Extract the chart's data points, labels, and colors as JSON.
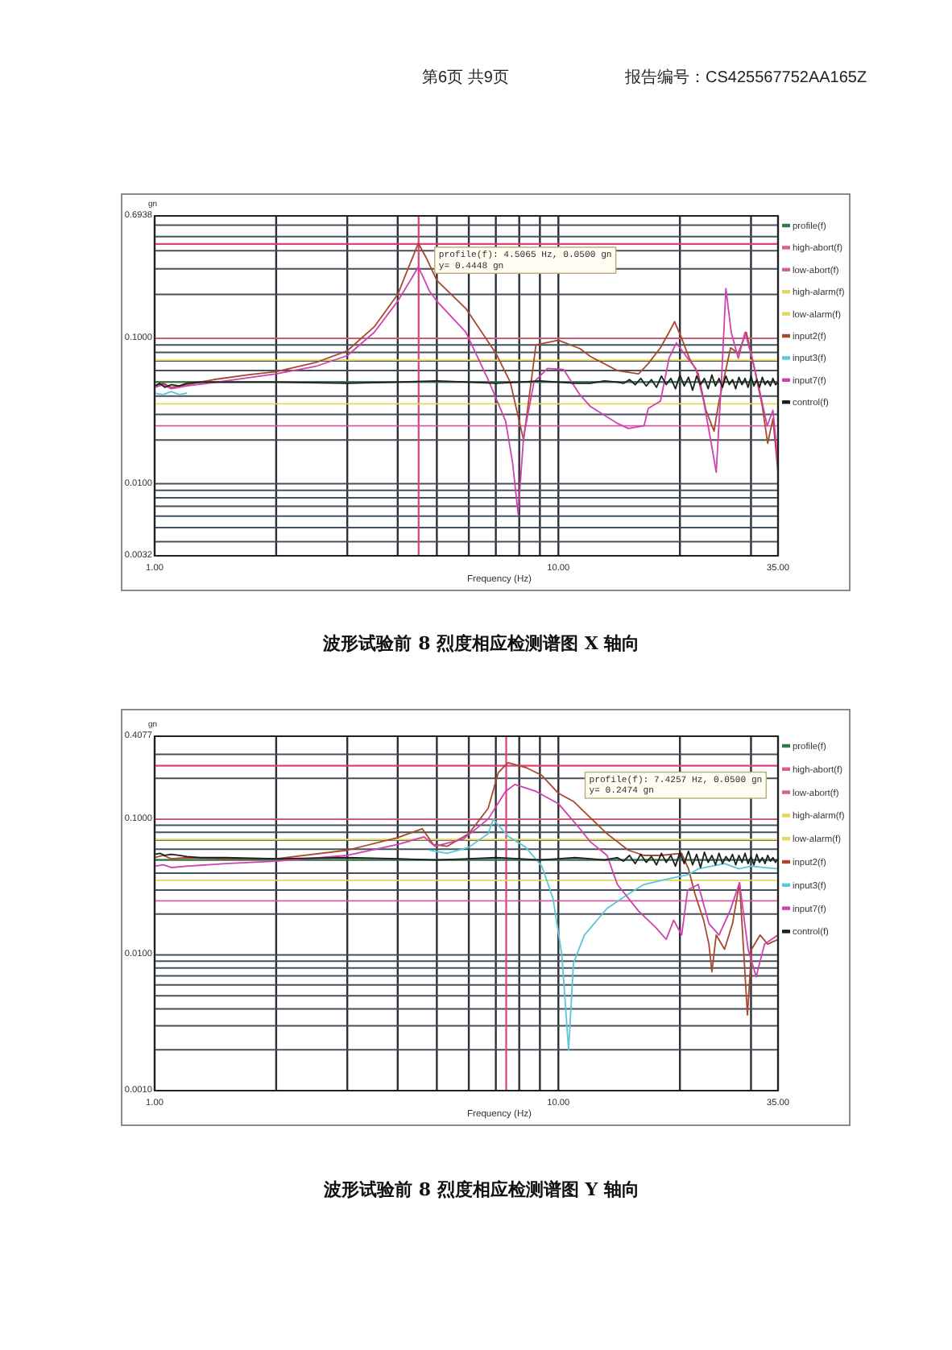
{
  "chart_data": [
    {
      "type": "line",
      "title": "波形试验前 8 烈度相应检测谱图 X 轴向",
      "xlabel": "Frequency (Hz)",
      "ylabel": "gn",
      "log": "xy",
      "xlim": [
        1,
        35
      ],
      "ylim": [
        0.0032,
        0.6938
      ],
      "xticks": [
        {
          "value": 1,
          "label": "1.00"
        },
        {
          "value": 2,
          "label": null
        },
        {
          "value": 3,
          "label": null
        },
        {
          "value": 4,
          "label": null
        },
        {
          "value": 5,
          "label": null
        },
        {
          "value": 6,
          "label": null
        },
        {
          "value": 7,
          "label": null
        },
        {
          "value": 8,
          "label": null
        },
        {
          "value": 9,
          "label": null
        },
        {
          "value": 10,
          "label": "10.00"
        },
        {
          "value": 20,
          "label": null
        },
        {
          "value": 30,
          "label": null
        },
        {
          "value": 35,
          "label": "35.00"
        }
      ],
      "yticks": [
        {
          "value": 0.0032,
          "label": "0.0032"
        },
        {
          "value": 0.004,
          "label": null
        },
        {
          "value": 0.005,
          "label": null
        },
        {
          "value": 0.006,
          "label": null
        },
        {
          "value": 0.007,
          "label": null
        },
        {
          "value": 0.008,
          "label": null
        },
        {
          "value": 0.009,
          "label": null
        },
        {
          "value": 0.01,
          "label": "0.0100"
        },
        {
          "value": 0.02,
          "label": null
        },
        {
          "value": 0.03,
          "label": null
        },
        {
          "value": 0.04,
          "label": null
        },
        {
          "value": 0.05,
          "label": null
        },
        {
          "value": 0.06,
          "label": null
        },
        {
          "value": 0.07,
          "label": null
        },
        {
          "value": 0.08,
          "label": null
        },
        {
          "value": 0.09,
          "label": null
        },
        {
          "value": 0.1,
          "label": "0.1000"
        },
        {
          "value": 0.2,
          "label": null
        },
        {
          "value": 0.3,
          "label": null
        },
        {
          "value": 0.4,
          "label": null
        },
        {
          "value": 0.5,
          "label": null
        },
        {
          "value": 0.6,
          "label": null
        },
        {
          "value": 0.6938,
          "label": "0.6938"
        }
      ],
      "grid": true,
      "legend": "right",
      "ref_lines": [
        {
          "axis": "x",
          "value": 4.5065,
          "color": "#e0407a"
        },
        {
          "axis": "y",
          "value": 0.4448,
          "color": "#e0407a"
        }
      ],
      "annotations": [
        "第6页 共9页",
        "报告编号：CS425567752AA165Z",
        "profile(f): 4.5065 Hz, 0.0500 gn",
        "y= 0.4448 gn"
      ],
      "series": [
        {
          "name": "profile(f)",
          "color": "#2f7a45",
          "x": [
            1,
            35
          ],
          "values": [
            0.05,
            0.05
          ]
        },
        {
          "name": "high-abort(f)",
          "color": "#e0607a",
          "x": [
            1,
            35
          ],
          "values": [
            0.1,
            0.1
          ]
        },
        {
          "name": "low-abort(f)",
          "color": "#d060a0",
          "x": [
            1,
            35
          ],
          "values": [
            0.025,
            0.025
          ]
        },
        {
          "name": "high-alarm(f)",
          "color": "#e6d65a",
          "x": [
            1,
            35
          ],
          "values": [
            0.0707,
            0.0707
          ]
        },
        {
          "name": "low-alarm(f)",
          "color": "#e6d65a",
          "x": [
            1,
            35
          ],
          "values": [
            0.0354,
            0.0354
          ]
        },
        {
          "name": "input2(f)",
          "color": "#a8482c",
          "x": [
            1,
            1.05,
            1.1,
            1.2,
            1.4,
            1.7,
            2,
            2.5,
            3,
            3.5,
            4,
            4.3,
            4.5,
            4.7,
            5,
            5.9,
            7,
            7.6,
            8.2,
            8.8,
            10,
            11.3,
            12,
            14,
            15.8,
            16.7,
            17.9,
            18.8,
            19.4,
            20.2,
            21.1,
            22.2,
            23.2,
            24.3,
            25,
            26.7,
            27.9,
            29.2,
            30.6,
            32,
            33,
            34,
            35
          ],
          "values": [
            0.047,
            0.049,
            0.046,
            0.048,
            0.052,
            0.056,
            0.059,
            0.068,
            0.082,
            0.12,
            0.2,
            0.33,
            0.45,
            0.36,
            0.25,
            0.16,
            0.079,
            0.05,
            0.02,
            0.09,
            0.097,
            0.085,
            0.075,
            0.06,
            0.057,
            0.067,
            0.086,
            0.11,
            0.13,
            0.1,
            0.073,
            0.057,
            0.032,
            0.023,
            0.037,
            0.086,
            0.079,
            0.11,
            0.062,
            0.034,
            0.019,
            0.028,
            0.012
          ]
        },
        {
          "name": "input3(f)",
          "color": "#5cc6d8",
          "x": [
            1,
            1.05,
            1.1,
            1.15,
            1.2
          ],
          "values": [
            0.042,
            0.041,
            0.043,
            0.041,
            0.042
          ]
        },
        {
          "name": "input7(f)",
          "color": "#d040b0",
          "x": [
            1,
            1.05,
            1.1,
            1.2,
            1.5,
            2,
            2.5,
            3,
            3.5,
            4,
            4.3,
            4.5,
            4.8,
            5,
            5.9,
            6.7,
            7.4,
            7.7,
            7.95,
            8.2,
            8.7,
            9.4,
            10.3,
            11.3,
            12,
            14,
            14.9,
            16.3,
            16.7,
            17.9,
            18.8,
            19.6,
            20.9,
            21.9,
            22.9,
            24,
            24.6,
            25.4,
            26,
            26.8,
            27.9,
            29,
            30.2,
            31.5,
            32.9,
            34,
            35
          ],
          "values": [
            0.046,
            0.048,
            0.045,
            0.047,
            0.051,
            0.057,
            0.064,
            0.076,
            0.11,
            0.18,
            0.25,
            0.31,
            0.21,
            0.18,
            0.11,
            0.052,
            0.027,
            0.014,
            0.0062,
            0.021,
            0.05,
            0.062,
            0.061,
            0.041,
            0.034,
            0.026,
            0.024,
            0.025,
            0.033,
            0.037,
            0.073,
            0.093,
            0.073,
            0.062,
            0.037,
            0.018,
            0.012,
            0.057,
            0.22,
            0.11,
            0.073,
            0.11,
            0.073,
            0.044,
            0.025,
            0.032,
            0.014
          ]
        },
        {
          "name": "control(f)",
          "color": "#1e1e1e",
          "x": [
            1,
            1.03,
            1.06,
            1.1,
            1.15,
            1.2,
            1.3,
            1.5,
            2,
            3,
            4,
            5,
            6,
            7,
            8,
            9,
            10,
            11,
            12,
            13,
            14,
            14.5,
            15,
            15.5,
            16,
            16.5,
            17,
            17.5,
            18,
            18.5,
            19,
            19.5,
            20,
            20.5,
            21,
            21.5,
            22,
            22.5,
            23,
            23.5,
            24,
            24.5,
            25,
            25.5,
            26,
            26.5,
            27,
            27.5,
            28,
            28.5,
            29,
            29.5,
            30,
            30.5,
            31,
            31.5,
            32,
            32.5,
            33,
            33.5,
            34,
            34.5,
            35
          ],
          "values": [
            0.047,
            0.049,
            0.046,
            0.048,
            0.047,
            0.049,
            0.05,
            0.05,
            0.05,
            0.049,
            0.05,
            0.051,
            0.05,
            0.049,
            0.05,
            0.051,
            0.05,
            0.049,
            0.049,
            0.051,
            0.05,
            0.049,
            0.052,
            0.048,
            0.053,
            0.047,
            0.052,
            0.046,
            0.055,
            0.048,
            0.053,
            0.045,
            0.056,
            0.047,
            0.054,
            0.044,
            0.055,
            0.048,
            0.053,
            0.045,
            0.056,
            0.047,
            0.053,
            0.046,
            0.055,
            0.048,
            0.052,
            0.045,
            0.054,
            0.048,
            0.053,
            0.046,
            0.055,
            0.047,
            0.052,
            0.046,
            0.054,
            0.048,
            0.051,
            0.047,
            0.053,
            0.048,
            0.05
          ]
        }
      ]
    },
    {
      "type": "line",
      "title": "波形试验前 8 烈度相应检测谱图 Y 轴向",
      "xlabel": "Frequency (Hz)",
      "ylabel": "gn",
      "log": "xy",
      "xlim": [
        1,
        35
      ],
      "ylim": [
        0.001,
        0.4077
      ],
      "xticks": [
        {
          "value": 1,
          "label": "1.00"
        },
        {
          "value": 2,
          "label": null
        },
        {
          "value": 3,
          "label": null
        },
        {
          "value": 4,
          "label": null
        },
        {
          "value": 5,
          "label": null
        },
        {
          "value": 6,
          "label": null
        },
        {
          "value": 7,
          "label": null
        },
        {
          "value": 8,
          "label": null
        },
        {
          "value": 9,
          "label": null
        },
        {
          "value": 10,
          "label": "10.00"
        },
        {
          "value": 20,
          "label": null
        },
        {
          "value": 30,
          "label": null
        },
        {
          "value": 35,
          "label": "35.00"
        }
      ],
      "yticks": [
        {
          "value": 0.001,
          "label": "0.0010"
        },
        {
          "value": 0.002,
          "label": null
        },
        {
          "value": 0.003,
          "label": null
        },
        {
          "value": 0.004,
          "label": null
        },
        {
          "value": 0.005,
          "label": null
        },
        {
          "value": 0.006,
          "label": null
        },
        {
          "value": 0.007,
          "label": null
        },
        {
          "value": 0.008,
          "label": null
        },
        {
          "value": 0.009,
          "label": null
        },
        {
          "value": 0.01,
          "label": "0.0100"
        },
        {
          "value": 0.02,
          "label": null
        },
        {
          "value": 0.03,
          "label": null
        },
        {
          "value": 0.04,
          "label": null
        },
        {
          "value": 0.05,
          "label": null
        },
        {
          "value": 0.06,
          "label": null
        },
        {
          "value": 0.07,
          "label": null
        },
        {
          "value": 0.08,
          "label": null
        },
        {
          "value": 0.09,
          "label": null
        },
        {
          "value": 0.1,
          "label": "0.1000"
        },
        {
          "value": 0.2,
          "label": null
        },
        {
          "value": 0.3,
          "label": null
        },
        {
          "value": 0.4077,
          "label": "0.4077"
        }
      ],
      "grid": true,
      "legend": "right",
      "ref_lines": [
        {
          "axis": "x",
          "value": 7.4257,
          "color": "#e0407a"
        },
        {
          "axis": "y",
          "value": 0.2474,
          "color": "#e0407a"
        }
      ],
      "annotations": [
        "profile(f): 7.4257 Hz, 0.0500 gn",
        "y= 0.2474 gn"
      ],
      "series": [
        {
          "name": "profile(f)",
          "color": "#2f7a45",
          "x": [
            1,
            35
          ],
          "values": [
            0.05,
            0.05
          ]
        },
        {
          "name": "high-abort(f)",
          "color": "#e0607a",
          "x": [
            1,
            35
          ],
          "values": [
            0.1,
            0.1
          ]
        },
        {
          "name": "low-abort(f)",
          "color": "#d060a0",
          "x": [
            1,
            35
          ],
          "values": [
            0.025,
            0.025
          ]
        },
        {
          "name": "high-alarm(f)",
          "color": "#e6d65a",
          "x": [
            1,
            35
          ],
          "values": [
            0.0707,
            0.0707
          ]
        },
        {
          "name": "low-alarm(f)",
          "color": "#e6d65a",
          "x": [
            1,
            35
          ],
          "values": [
            0.0354,
            0.0354
          ]
        },
        {
          "name": "input2(f)",
          "color": "#a8482c",
          "x": [
            1,
            1.05,
            1.1,
            1.2,
            1.5,
            2,
            3,
            4,
            4.6,
            4.9,
            5.3,
            6,
            6.7,
            7.1,
            7.5,
            8.3,
            9.1,
            10,
            10.9,
            11.7,
            13.2,
            14.9,
            16.3,
            17.9,
            20.2,
            21,
            21.8,
            22.9,
            23.6,
            24,
            24.6,
            25.8,
            27,
            28.1,
            28.7,
            29.4,
            30.1,
            31.6,
            33,
            35
          ],
          "values": [
            0.052,
            0.054,
            0.051,
            0.052,
            0.051,
            0.051,
            0.059,
            0.073,
            0.085,
            0.065,
            0.063,
            0.078,
            0.12,
            0.22,
            0.26,
            0.24,
            0.21,
            0.155,
            0.135,
            0.11,
            0.078,
            0.059,
            0.054,
            0.054,
            0.056,
            0.043,
            0.028,
            0.018,
            0.012,
            0.0075,
            0.014,
            0.011,
            0.017,
            0.034,
            0.012,
            0.0036,
            0.011,
            0.014,
            0.012,
            0.013
          ]
        },
        {
          "name": "input3(f)",
          "color": "#5cc6d8",
          "x": [
            4.8,
            5.3,
            6,
            6.7,
            6.9,
            7.1,
            7.5,
            8.3,
            9.1,
            9.7,
            10.2,
            10.6,
            10.9,
            11.6,
            13.2,
            14.9,
            16.3,
            18.5,
            21,
            22.2,
            25.8,
            28,
            30,
            35
          ],
          "values": [
            0.059,
            0.056,
            0.062,
            0.078,
            0.1,
            0.09,
            0.075,
            0.062,
            0.045,
            0.026,
            0.01,
            0.002,
            0.0087,
            0.014,
            0.022,
            0.028,
            0.033,
            0.036,
            0.039,
            0.043,
            0.047,
            0.043,
            0.045,
            0.043
          ]
        },
        {
          "name": "input7(f)",
          "color": "#d040b0",
          "x": [
            1,
            1.05,
            1.1,
            1.2,
            1.5,
            2,
            3,
            4,
            4.65,
            4.95,
            5.8,
            6.7,
            7.4,
            7.8,
            8.8,
            10,
            11.3,
            12,
            13.2,
            14,
            15.8,
            17.4,
            18.5,
            19.3,
            20.2,
            20.9,
            22.2,
            23.6,
            25,
            26.6,
            28.1,
            29.5,
            30.9,
            32.4,
            35
          ],
          "values": [
            0.045,
            0.046,
            0.044,
            0.045,
            0.047,
            0.049,
            0.054,
            0.065,
            0.074,
            0.063,
            0.071,
            0.1,
            0.16,
            0.18,
            0.16,
            0.13,
            0.085,
            0.068,
            0.054,
            0.033,
            0.021,
            0.016,
            0.013,
            0.018,
            0.014,
            0.03,
            0.033,
            0.017,
            0.014,
            0.021,
            0.034,
            0.011,
            0.0069,
            0.012,
            0.014
          ]
        },
        {
          "name": "control(f)",
          "color": "#1e1e1e",
          "x": [
            1,
            1.03,
            1.06,
            1.1,
            1.15,
            1.2,
            1.3,
            1.5,
            2,
            3,
            4,
            5,
            6,
            7,
            8,
            9,
            10,
            11,
            12,
            13,
            14,
            14.5,
            15,
            15.5,
            16,
            16.5,
            17,
            17.5,
            18,
            18.5,
            19,
            19.5,
            20,
            20.5,
            21,
            21.5,
            22,
            22.5,
            23,
            23.5,
            24,
            24.5,
            25,
            25.5,
            26,
            26.5,
            27,
            27.5,
            28,
            28.5,
            29,
            29.5,
            30,
            30.5,
            31,
            31.5,
            32,
            32.5,
            33,
            33.5,
            34,
            34.5,
            35
          ],
          "values": [
            0.055,
            0.056,
            0.054,
            0.055,
            0.054,
            0.053,
            0.052,
            0.052,
            0.051,
            0.052,
            0.051,
            0.05,
            0.051,
            0.052,
            0.051,
            0.05,
            0.051,
            0.052,
            0.051,
            0.05,
            0.052,
            0.049,
            0.054,
            0.047,
            0.055,
            0.048,
            0.053,
            0.046,
            0.056,
            0.048,
            0.054,
            0.045,
            0.057,
            0.047,
            0.058,
            0.046,
            0.055,
            0.044,
            0.057,
            0.048,
            0.054,
            0.046,
            0.056,
            0.047,
            0.053,
            0.049,
            0.055,
            0.046,
            0.054,
            0.048,
            0.056,
            0.047,
            0.053,
            0.046,
            0.055,
            0.048,
            0.052,
            0.047,
            0.054,
            0.049,
            0.052,
            0.048,
            0.051
          ]
        }
      ]
    }
  ]
}
